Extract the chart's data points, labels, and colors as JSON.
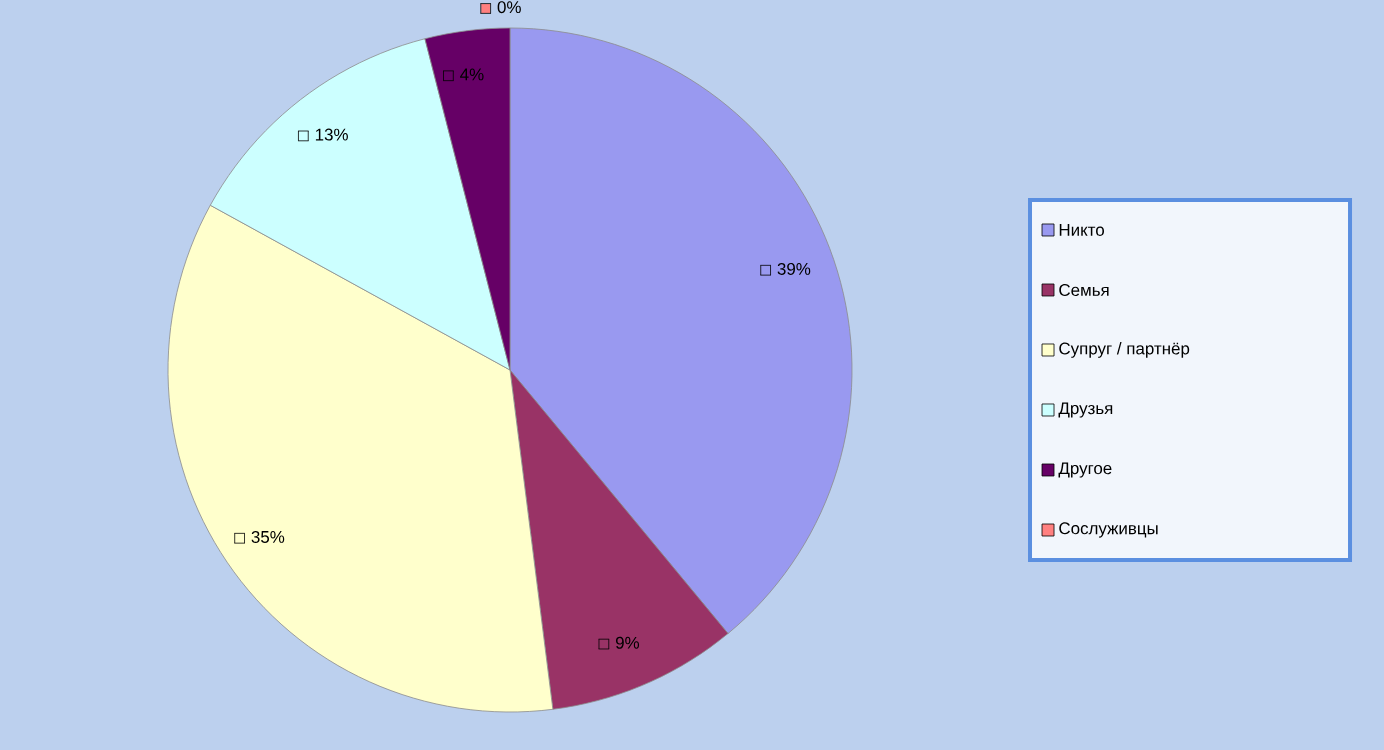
{
  "chart_data": {
    "type": "pie",
    "categories": [
      "Никто",
      "Семья",
      "Супруг / партнёр",
      "Друзья",
      "Другое",
      "Сослуживцы"
    ],
    "values": [
      39,
      9,
      35,
      13,
      4,
      0
    ],
    "colors": [
      "#9999f0",
      "#993366",
      "#ffffcc",
      "#ccffff",
      "#660066",
      "#ff8080"
    ],
    "value_labels": [
      "39%",
      "9%",
      "35%",
      "13%",
      "4%",
      "0%"
    ],
    "legend": "right"
  }
}
